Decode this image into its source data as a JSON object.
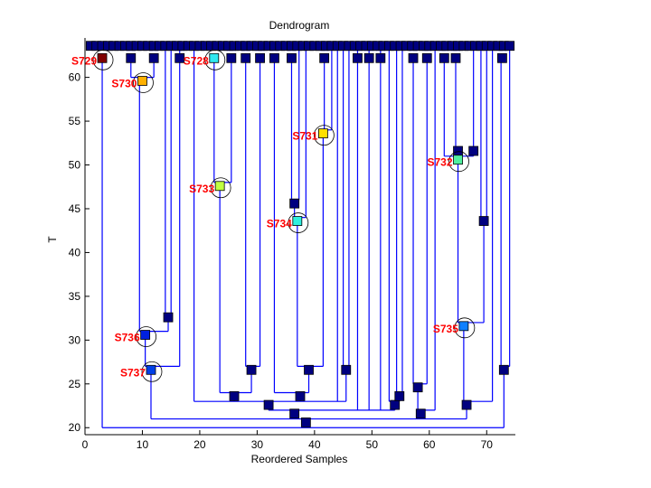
{
  "chart_data": {
    "type": "dendrogram",
    "title": "Dendrogram",
    "xlabel": "Reordered Samples",
    "ylabel": "T",
    "xlim": [
      0,
      75
    ],
    "ylim": [
      19.2,
      64.5
    ],
    "xticks": [
      0,
      10,
      20,
      30,
      40,
      50,
      60,
      70
    ],
    "yticks": [
      20,
      25,
      30,
      35,
      40,
      45,
      50,
      55,
      60
    ],
    "grid": false,
    "line_color": "#0000ff",
    "node_color": "#000080",
    "label_color": "#ff0000",
    "leaf_count": 74,
    "leaf_level": 63.6,
    "subleaf_level": 62.2,
    "subleaf_x": [
      8,
      12,
      16.5,
      25.5,
      28,
      30.5,
      33,
      36,
      41.7,
      47.5,
      49.5,
      51.5,
      57.2,
      59.6,
      62.6,
      64.6,
      72.7
    ],
    "labeled_clusters": [
      {
        "label": "S729",
        "x": 3,
        "t": 62.2,
        "color": "#800000"
      },
      {
        "label": "S730",
        "x": 10,
        "t": 59.6,
        "color": "#ffb000"
      },
      {
        "label": "S728",
        "x": 22.5,
        "t": 62.2,
        "color": "#30e8f0"
      },
      {
        "label": "S733",
        "x": 23.5,
        "t": 47.6,
        "color": "#c0ff40"
      },
      {
        "label": "S731",
        "x": 41.5,
        "t": 53.6,
        "color": "#ffe000"
      },
      {
        "label": "S734",
        "x": 37,
        "t": 43.6,
        "color": "#30f0e0"
      },
      {
        "label": "S732",
        "x": 65,
        "t": 50.6,
        "color": "#50f0a0"
      },
      {
        "label": "S735",
        "x": 66,
        "t": 31.6,
        "color": "#1080ff"
      },
      {
        "label": "S736",
        "x": 10.5,
        "t": 30.6,
        "color": "#0020e0"
      },
      {
        "label": "S737",
        "x": 11.5,
        "t": 26.6,
        "color": "#0040e8"
      }
    ],
    "internal_nodes": [
      [
        14.5,
        32.6
      ],
      [
        36.5,
        45.6
      ],
      [
        73,
        26.6
      ],
      [
        29,
        26.6
      ],
      [
        39,
        26.6
      ],
      [
        45.5,
        26.6
      ],
      [
        26,
        23.6
      ],
      [
        37.5,
        23.6
      ],
      [
        32,
        22.6
      ],
      [
        36.5,
        21.6
      ],
      [
        38.5,
        20.6
      ],
      [
        54,
        22.6
      ],
      [
        54.8,
        23.6
      ],
      [
        58,
        24.6
      ],
      [
        58.5,
        21.6
      ],
      [
        66.5,
        22.6
      ],
      [
        69.5,
        43.6
      ],
      [
        65,
        51.6
      ],
      [
        67.7,
        51.6
      ]
    ],
    "links": [
      [
        3,
        62.2,
        3,
        20
      ],
      [
        3,
        20,
        73,
        20
      ],
      [
        73,
        20,
        73,
        26.6
      ],
      [
        72.5,
        27,
        74,
        27
      ],
      [
        72.5,
        27,
        72.5,
        62.2
      ],
      [
        74,
        27,
        74,
        63.6
      ],
      [
        11.5,
        21,
        66.5,
        21
      ],
      [
        11.5,
        21,
        11.5,
        26.6
      ],
      [
        36.5,
        21,
        36.5,
        21.6
      ],
      [
        58.5,
        21,
        58.5,
        21.6
      ],
      [
        66.5,
        21,
        66.5,
        22.6
      ],
      [
        10.5,
        27,
        16.5,
        27
      ],
      [
        10.5,
        27,
        10.5,
        30.6
      ],
      [
        16.5,
        27,
        16.5,
        63.6
      ],
      [
        9.5,
        31,
        14.5,
        31
      ],
      [
        9.5,
        31,
        9.5,
        59.6
      ],
      [
        14.5,
        31,
        14.5,
        32.6
      ],
      [
        14,
        33,
        15,
        33
      ],
      [
        14,
        33,
        14,
        63.6
      ],
      [
        15,
        33,
        15,
        63.6
      ],
      [
        8,
        60,
        12,
        60
      ],
      [
        8,
        60,
        8,
        62.2
      ],
      [
        12,
        60,
        12,
        62.2
      ],
      [
        32,
        22,
        54,
        22
      ],
      [
        32,
        22,
        32,
        22.6
      ],
      [
        47.5,
        22,
        47.5,
        63.6
      ],
      [
        49.5,
        22,
        49.5,
        63.6
      ],
      [
        51.5,
        22,
        51.5,
        63.6
      ],
      [
        54,
        22,
        54,
        22.6
      ],
      [
        19,
        23,
        45.5,
        23
      ],
      [
        19,
        23,
        19,
        63.6
      ],
      [
        26,
        23,
        26,
        23.6
      ],
      [
        37.5,
        23,
        37.5,
        23.6
      ],
      [
        44,
        23,
        44,
        63.6
      ],
      [
        45.5,
        23,
        45.5,
        26.6
      ],
      [
        23.5,
        24,
        29,
        24
      ],
      [
        23.5,
        24,
        23.5,
        47.6
      ],
      [
        29,
        24,
        29,
        26.6
      ],
      [
        22.5,
        48,
        25.5,
        48
      ],
      [
        22.5,
        48,
        22.5,
        62.2
      ],
      [
        25.5,
        48,
        25.5,
        62.2
      ],
      [
        28,
        27,
        30.5,
        27
      ],
      [
        28,
        27,
        28,
        62.2
      ],
      [
        30.5,
        27,
        30.5,
        62.2
      ],
      [
        33,
        24,
        39,
        24
      ],
      [
        33,
        24,
        33,
        62.2
      ],
      [
        39,
        24,
        39,
        26.6
      ],
      [
        37,
        27,
        41.5,
        27
      ],
      [
        37,
        27,
        37,
        43.6
      ],
      [
        41.5,
        27,
        41.5,
        53.6
      ],
      [
        36.5,
        44,
        38.5,
        44
      ],
      [
        36.5,
        44,
        36.5,
        45.6
      ],
      [
        38.5,
        44,
        38.5,
        63.6
      ],
      [
        36,
        46,
        37.3,
        46
      ],
      [
        36,
        46,
        36,
        62.2
      ],
      [
        37.3,
        46,
        37.3,
        63.6
      ],
      [
        41.5,
        54,
        43,
        54
      ],
      [
        41.7,
        54,
        41.7,
        62.2
      ],
      [
        43,
        54,
        43,
        63.6
      ],
      [
        45,
        27,
        46,
        27
      ],
      [
        45,
        27,
        45,
        63.6
      ],
      [
        46,
        27,
        46,
        63.6
      ],
      [
        53,
        23,
        54.8,
        23
      ],
      [
        53,
        23,
        53,
        63.6
      ],
      [
        54.8,
        23,
        54.8,
        23.6
      ],
      [
        54.3,
        24,
        55.3,
        24
      ],
      [
        54.3,
        24,
        54.3,
        63.6
      ],
      [
        55.3,
        24,
        55.3,
        63.6
      ],
      [
        58,
        22,
        61,
        22
      ],
      [
        58,
        22,
        58,
        24.6
      ],
      [
        61,
        22,
        61,
        63.6
      ],
      [
        57.2,
        25,
        59.6,
        25
      ],
      [
        57.2,
        25,
        57.2,
        62.2
      ],
      [
        59.6,
        25,
        59.6,
        62.2
      ],
      [
        66,
        23,
        71,
        23
      ],
      [
        66,
        23,
        66,
        31.6
      ],
      [
        71,
        23,
        71,
        63.6
      ],
      [
        65,
        32,
        69.5,
        32
      ],
      [
        65,
        32,
        65,
        50.6
      ],
      [
        69.5,
        32,
        69.5,
        43.6
      ],
      [
        69,
        44,
        70,
        44
      ],
      [
        69,
        44,
        69,
        63.6
      ],
      [
        70,
        44,
        70,
        63.6
      ],
      [
        62.6,
        51,
        67.7,
        51
      ],
      [
        62.6,
        51,
        62.6,
        62.2
      ],
      [
        67.7,
        51,
        67.7,
        51.6
      ],
      [
        65,
        51,
        65,
        51.6
      ],
      [
        64.6,
        51.6,
        64.6,
        62.2
      ],
      [
        67.7,
        51.6,
        67.7,
        63.6
      ]
    ]
  }
}
